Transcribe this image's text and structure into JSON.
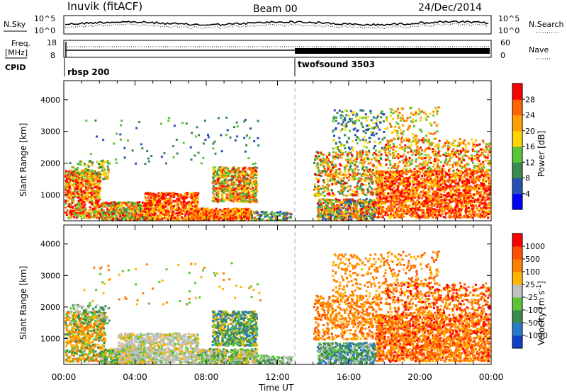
{
  "header": {
    "title": "Inuvik (fitACF)",
    "beam": "Beam 00",
    "date": "24/Dec/2014"
  },
  "panels": {
    "nsky": {
      "left_label": "N.Sky",
      "right_label": "N.Search",
      "left_ticks": [
        "10^5",
        "10^0"
      ],
      "right_ticks": [
        "10^5",
        "10^0"
      ]
    },
    "freq": {
      "left_label_line1": "Freq.",
      "left_label_line2": "[MHz]",
      "right_label": "Nave",
      "left_ticks": [
        "18",
        "8"
      ],
      "right_ticks": [
        "60",
        "0"
      ]
    },
    "cpid": {
      "label": "CPID",
      "programs": [
        {
          "name": "rbsp 200",
          "start_h": 0
        },
        {
          "name": "twofsound 3503",
          "start_h": 13
        }
      ]
    }
  },
  "chart_data": [
    {
      "type": "heatmap",
      "name": "power",
      "ylabel": "Slant Range [km]",
      "y_ticks": [
        "1000",
        "2000",
        "3000",
        "4000"
      ],
      "ylim": [
        180,
        4600
      ],
      "colorbar_label": "Power [dB]",
      "colorbar_ticks": [
        "4",
        "8",
        "12",
        "16",
        "20",
        "24",
        "28"
      ],
      "colors": [
        "#0000ff",
        "#2850b4",
        "#3a8a50",
        "#5cc43a",
        "#ffd400",
        "#ffa000",
        "#ff6400",
        "#ff0000"
      ]
    },
    {
      "type": "heatmap",
      "name": "velocity",
      "ylabel": "Slant Range [km]",
      "y_ticks": [
        "1000",
        "2000",
        "3000",
        "4000"
      ],
      "ylim": [
        180,
        4600
      ],
      "colorbar_label": "Velocity [m s",
      "colorbar_label_sup": "-1",
      "colorbar_label_end": "]",
      "colorbar_ticks": [
        "1000",
        "500",
        "100",
        "25",
        "-25",
        "-100",
        "-500",
        "-1000"
      ],
      "colors": [
        "#1040c8",
        "#2a78c8",
        "#3a8a50",
        "#5cc43a",
        "#c0c0c0",
        "#ffb400",
        "#ff8000",
        "#ff5000",
        "#ff0000"
      ]
    }
  ],
  "x_axis": {
    "label": "Time UT",
    "ticks": [
      "00:00",
      "04:00",
      "08:00",
      "12:00",
      "16:00",
      "20:00",
      "00:00"
    ],
    "xlim": [
      0,
      24
    ]
  },
  "colors": {
    "divider": "#cccccc"
  }
}
